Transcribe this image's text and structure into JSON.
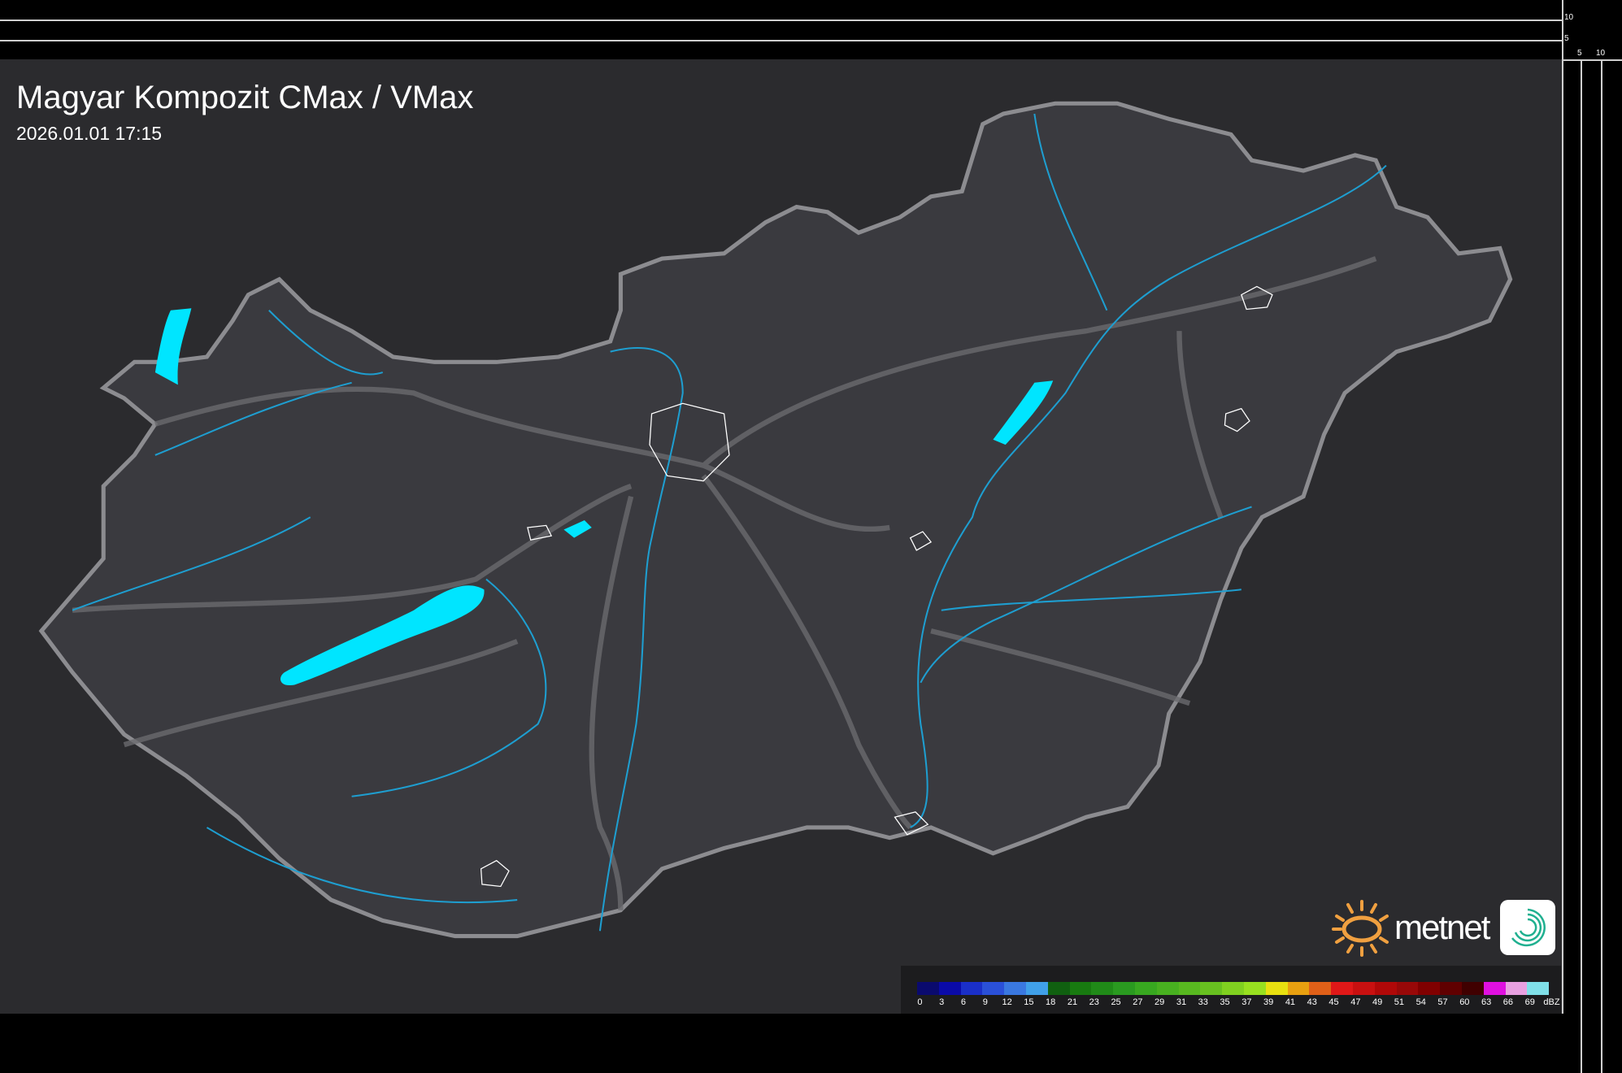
{
  "title": "Magyar Kompozit CMax / VMax",
  "datetime": "2026.01.01 17:15",
  "axis_labels": {
    "y_top": "10",
    "y_mid": "5",
    "x_a": "5",
    "x_b": "10"
  },
  "legend": {
    "unit": "dBZ",
    "ticks": [
      "0",
      "3",
      "6",
      "9",
      "12",
      "15",
      "18",
      "21",
      "23",
      "25",
      "27",
      "29",
      "31",
      "33",
      "35",
      "37",
      "39",
      "41",
      "43",
      "45",
      "47",
      "49",
      "51",
      "54",
      "57",
      "60",
      "63",
      "66",
      "69"
    ],
    "colors": [
      "#0a0a6e",
      "#0a0aa8",
      "#1a2fc8",
      "#2a50d8",
      "#3a78e0",
      "#40a0e8",
      "#106010",
      "#187a10",
      "#208a18",
      "#2a9a20",
      "#38a820",
      "#48b020",
      "#58b820",
      "#68c020",
      "#80d020",
      "#98e020",
      "#e8e010",
      "#e8a010",
      "#e06018",
      "#e01818",
      "#c81010",
      "#b00808",
      "#980808",
      "#800000",
      "#600000",
      "#400000",
      "#e010e0",
      "#e8a0e0",
      "#80e0e8"
    ]
  },
  "map": {
    "land_color": "#3a3a3f",
    "water_color": "#00e5ff",
    "river_color": "#1e9ed0",
    "border_color": "#8c8c90"
  },
  "brand": {
    "name": "metnet",
    "sun_color": "#f0a040",
    "icon_color": "#20b090"
  }
}
